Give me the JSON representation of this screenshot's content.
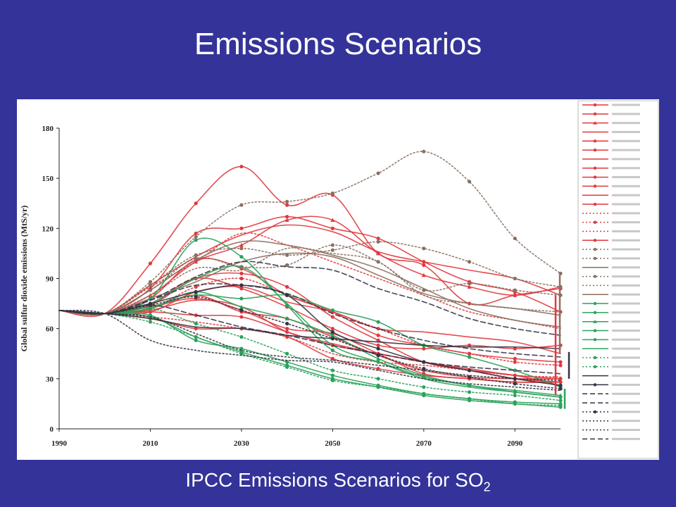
{
  "slide": {
    "title": "Emissions Scenarios",
    "caption_main": "IPCC Emissions Scenarios for SO",
    "caption_sub": "2"
  },
  "chart_data": {
    "type": "line",
    "ylabel": "Global sulfur dioxide emissions (MtS/yr)",
    "xlim": [
      1990,
      2100
    ],
    "ylim": [
      0,
      180
    ],
    "xticks": [
      1990,
      2010,
      2030,
      2050,
      2070,
      2090
    ],
    "yticks": [
      0,
      30,
      60,
      90,
      120,
      150,
      180
    ],
    "grid": false,
    "legend_position": "right",
    "colors": {
      "A1": "#e0393e",
      "A2": "#8a7060",
      "B1": "#2aa25a",
      "B2": "#333344"
    },
    "x": [
      1990,
      2000,
      2010,
      2020,
      2030,
      2040,
      2050,
      2060,
      2070,
      2080,
      2090,
      2100
    ],
    "series": [
      {
        "group": "A1",
        "marker": "circle",
        "dash": "solid",
        "values": [
          70.9,
          69,
          99,
          135,
          157,
          134,
          140,
          105,
          98,
          75,
          80,
          84
        ]
      },
      {
        "group": "A1",
        "marker": "circle",
        "dash": "solid",
        "values": [
          70.9,
          69,
          84,
          117,
          120,
          127,
          120,
          114,
          100,
          88,
          82,
          70
        ]
      },
      {
        "group": "A1",
        "marker": "tri",
        "dash": "solid",
        "values": [
          70.9,
          69,
          80,
          100,
          110,
          125,
          125,
          105,
          92,
          85,
          80,
          85
        ]
      },
      {
        "group": "A1",
        "marker": "none",
        "dash": "solid",
        "values": [
          70.9,
          69,
          86,
          103,
          116,
          122,
          118,
          106,
          100,
          95,
          90,
          80
        ]
      },
      {
        "group": "A1",
        "marker": "circle",
        "dash": "solid",
        "values": [
          70.9,
          69,
          78,
          101,
          96,
          80,
          70,
          56,
          50,
          45,
          42,
          40
        ]
      },
      {
        "group": "A1",
        "marker": "circle",
        "dash": "solid",
        "values": [
          70.9,
          69,
          75,
          90,
          84,
          73,
          60,
          50,
          48,
          50,
          48,
          50
        ]
      },
      {
        "group": "A1",
        "marker": "none",
        "dash": "solid",
        "values": [
          70.9,
          69,
          70,
          82,
          85,
          76,
          70,
          60,
          58,
          55,
          52,
          45
        ]
      },
      {
        "group": "A1",
        "marker": "circle",
        "dash": "solid",
        "values": [
          70.9,
          69,
          72,
          80,
          70,
          66,
          55,
          44,
          35,
          31,
          30,
          30
        ]
      },
      {
        "group": "A1",
        "marker": "circle",
        "dash": "solid",
        "values": [
          70.9,
          69,
          66,
          60,
          60,
          55,
          42,
          36,
          32,
          30,
          28,
          28
        ]
      },
      {
        "group": "A1",
        "marker": "circle",
        "dash": "solid",
        "values": [
          70.9,
          69,
          74,
          90,
          93,
          85,
          67,
          53,
          40,
          35,
          30,
          28
        ]
      },
      {
        "group": "A1",
        "marker": "none",
        "dash": "solid",
        "values": [
          70.9,
          69,
          71,
          77,
          73,
          58,
          51,
          45,
          40,
          36,
          32,
          30
        ]
      },
      {
        "group": "A1",
        "marker": "circle",
        "dash": "solid",
        "values": [
          70.9,
          69,
          70,
          68,
          67,
          58,
          50,
          45,
          40,
          35,
          32,
          26
        ]
      },
      {
        "group": "A1",
        "marker": "none",
        "dash": "dot",
        "values": [
          70.9,
          69,
          85,
          100,
          117,
          110,
          100,
          90,
          80,
          70,
          65,
          60
        ]
      },
      {
        "group": "A1",
        "marker": "circle",
        "dash": "dot",
        "values": [
          70.9,
          69,
          72,
          85,
          90,
          80,
          70,
          60,
          50,
          45,
          40,
          38
        ]
      },
      {
        "group": "A1",
        "marker": "none",
        "dash": "dot",
        "values": [
          70.9,
          69,
          67,
          64,
          60,
          55,
          45,
          40,
          38,
          35,
          32,
          31
        ]
      },
      {
        "group": "A1",
        "marker": "circle",
        "dash": "solid",
        "values": [
          70.9,
          69,
          73,
          78,
          71,
          60,
          57,
          45,
          33,
          30,
          28,
          28
        ]
      },
      {
        "group": "A2",
        "marker": "circle",
        "dash": "dot",
        "values": [
          70.9,
          69,
          88,
          115,
          134,
          136,
          141,
          153,
          166,
          148,
          114,
          93
        ]
      },
      {
        "group": "A2",
        "marker": "circle",
        "dash": "dot",
        "values": [
          70.9,
          69,
          86,
          104,
          108,
          104,
          107,
          112,
          108,
          100,
          90,
          85
        ]
      },
      {
        "group": "A2",
        "marker": "none",
        "dash": "solid",
        "values": [
          70.9,
          69,
          83,
          101,
          112,
          110,
          104,
          96,
          84,
          72,
          65,
          61
        ]
      },
      {
        "group": "A2",
        "marker": "circle",
        "dash": "dot",
        "values": [
          70.9,
          69,
          83,
          102,
          97,
          98,
          110,
          100,
          83,
          87,
          83,
          80
        ]
      },
      {
        "group": "A2",
        "marker": "none",
        "dash": "dot",
        "values": [
          70.9,
          69,
          80,
          96,
          95,
          108,
          105,
          100,
          80,
          75,
          72,
          70
        ]
      },
      {
        "group": "A2",
        "marker": "none",
        "dash": "solid",
        "values": [
          70.9,
          69,
          78,
          88,
          100,
          105,
          103,
          92,
          81,
          75,
          72,
          68
        ]
      },
      {
        "group": "B1",
        "marker": "circle",
        "dash": "solid",
        "values": [
          70.9,
          69,
          73,
          80,
          78,
          80,
          71,
          64,
          50,
          43,
          35,
          25
        ]
      },
      {
        "group": "B1",
        "marker": "circle",
        "dash": "solid",
        "values": [
          70.9,
          69,
          78,
          113,
          103,
          74,
          47,
          40,
          31,
          26,
          22,
          19
        ]
      },
      {
        "group": "B1",
        "marker": "tri",
        "dash": "solid",
        "values": [
          70.9,
          69,
          72,
          82,
          73,
          66,
          56,
          42,
          32,
          26,
          23,
          20
        ]
      },
      {
        "group": "B1",
        "marker": "circle",
        "dash": "solid",
        "values": [
          70.9,
          69,
          67,
          55,
          46,
          38,
          30,
          25,
          20,
          17,
          15,
          13
        ]
      },
      {
        "group": "B1",
        "marker": "circle",
        "dash": "solid",
        "values": [
          70.9,
          69,
          68,
          53,
          48,
          40,
          32,
          26,
          21,
          18,
          16,
          15
        ]
      },
      {
        "group": "B1",
        "marker": "none",
        "dash": "solid",
        "values": [
          70.9,
          69,
          75,
          90,
          97,
          75,
          50,
          40,
          30,
          25,
          22,
          19
        ]
      },
      {
        "group": "B1",
        "marker": "circle",
        "dash": "dot",
        "values": [
          70.9,
          69,
          64,
          55,
          45,
          37,
          29,
          25,
          21,
          18,
          15,
          14
        ]
      },
      {
        "group": "B1",
        "marker": "circle",
        "dash": "dot",
        "values": [
          70.9,
          69,
          72,
          63,
          55,
          45,
          35,
          30,
          25,
          22,
          20,
          17
        ]
      },
      {
        "group": "B2",
        "marker": "none",
        "dash": "solid",
        "values": [
          70.9,
          69,
          66,
          61,
          60,
          56,
          54,
          52,
          50,
          49,
          49,
          48
        ]
      },
      {
        "group": "B2",
        "marker": "circle",
        "dash": "solid",
        "values": [
          70.9,
          69,
          75,
          82,
          86,
          80,
          58,
          48,
          40,
          35,
          30,
          26
        ]
      },
      {
        "group": "B2",
        "marker": "none",
        "dash": "dash",
        "values": [
          70.9,
          69,
          77,
          91,
          100,
          97,
          95,
          84,
          76,
          66,
          60,
          56
        ]
      },
      {
        "group": "B2",
        "marker": "none",
        "dash": "dash",
        "values": [
          70.9,
          69,
          77,
          86,
          86,
          81,
          69,
          60,
          53,
          48,
          45,
          43
        ]
      },
      {
        "group": "B2",
        "marker": "circle",
        "dash": "dot",
        "values": [
          70.9,
          69,
          74,
          79,
          71,
          63,
          54,
          44,
          36,
          31,
          27,
          24
        ]
      },
      {
        "group": "B2",
        "marker": "none",
        "dash": "dot",
        "values": [
          70.9,
          69,
          67,
          57,
          47,
          43,
          41,
          38,
          35,
          32,
          30,
          29
        ]
      },
      {
        "group": "B2",
        "marker": "none",
        "dash": "dot",
        "values": [
          70.9,
          69,
          53,
          47,
          44,
          41,
          40,
          35,
          30,
          27,
          25,
          23
        ]
      },
      {
        "group": "B2",
        "marker": "none",
        "dash": "dash",
        "values": [
          70.9,
          69,
          74,
          68,
          61,
          56,
          50,
          45,
          40,
          37,
          35,
          33
        ]
      }
    ],
    "ranges": [
      {
        "group": "A2",
        "min": 45,
        "max": 92
      },
      {
        "group": "A1",
        "min": 20,
        "max": 80
      },
      {
        "group": "B2",
        "min": 30,
        "max": 46
      },
      {
        "group": "B1",
        "min": 12,
        "max": 24
      }
    ]
  }
}
